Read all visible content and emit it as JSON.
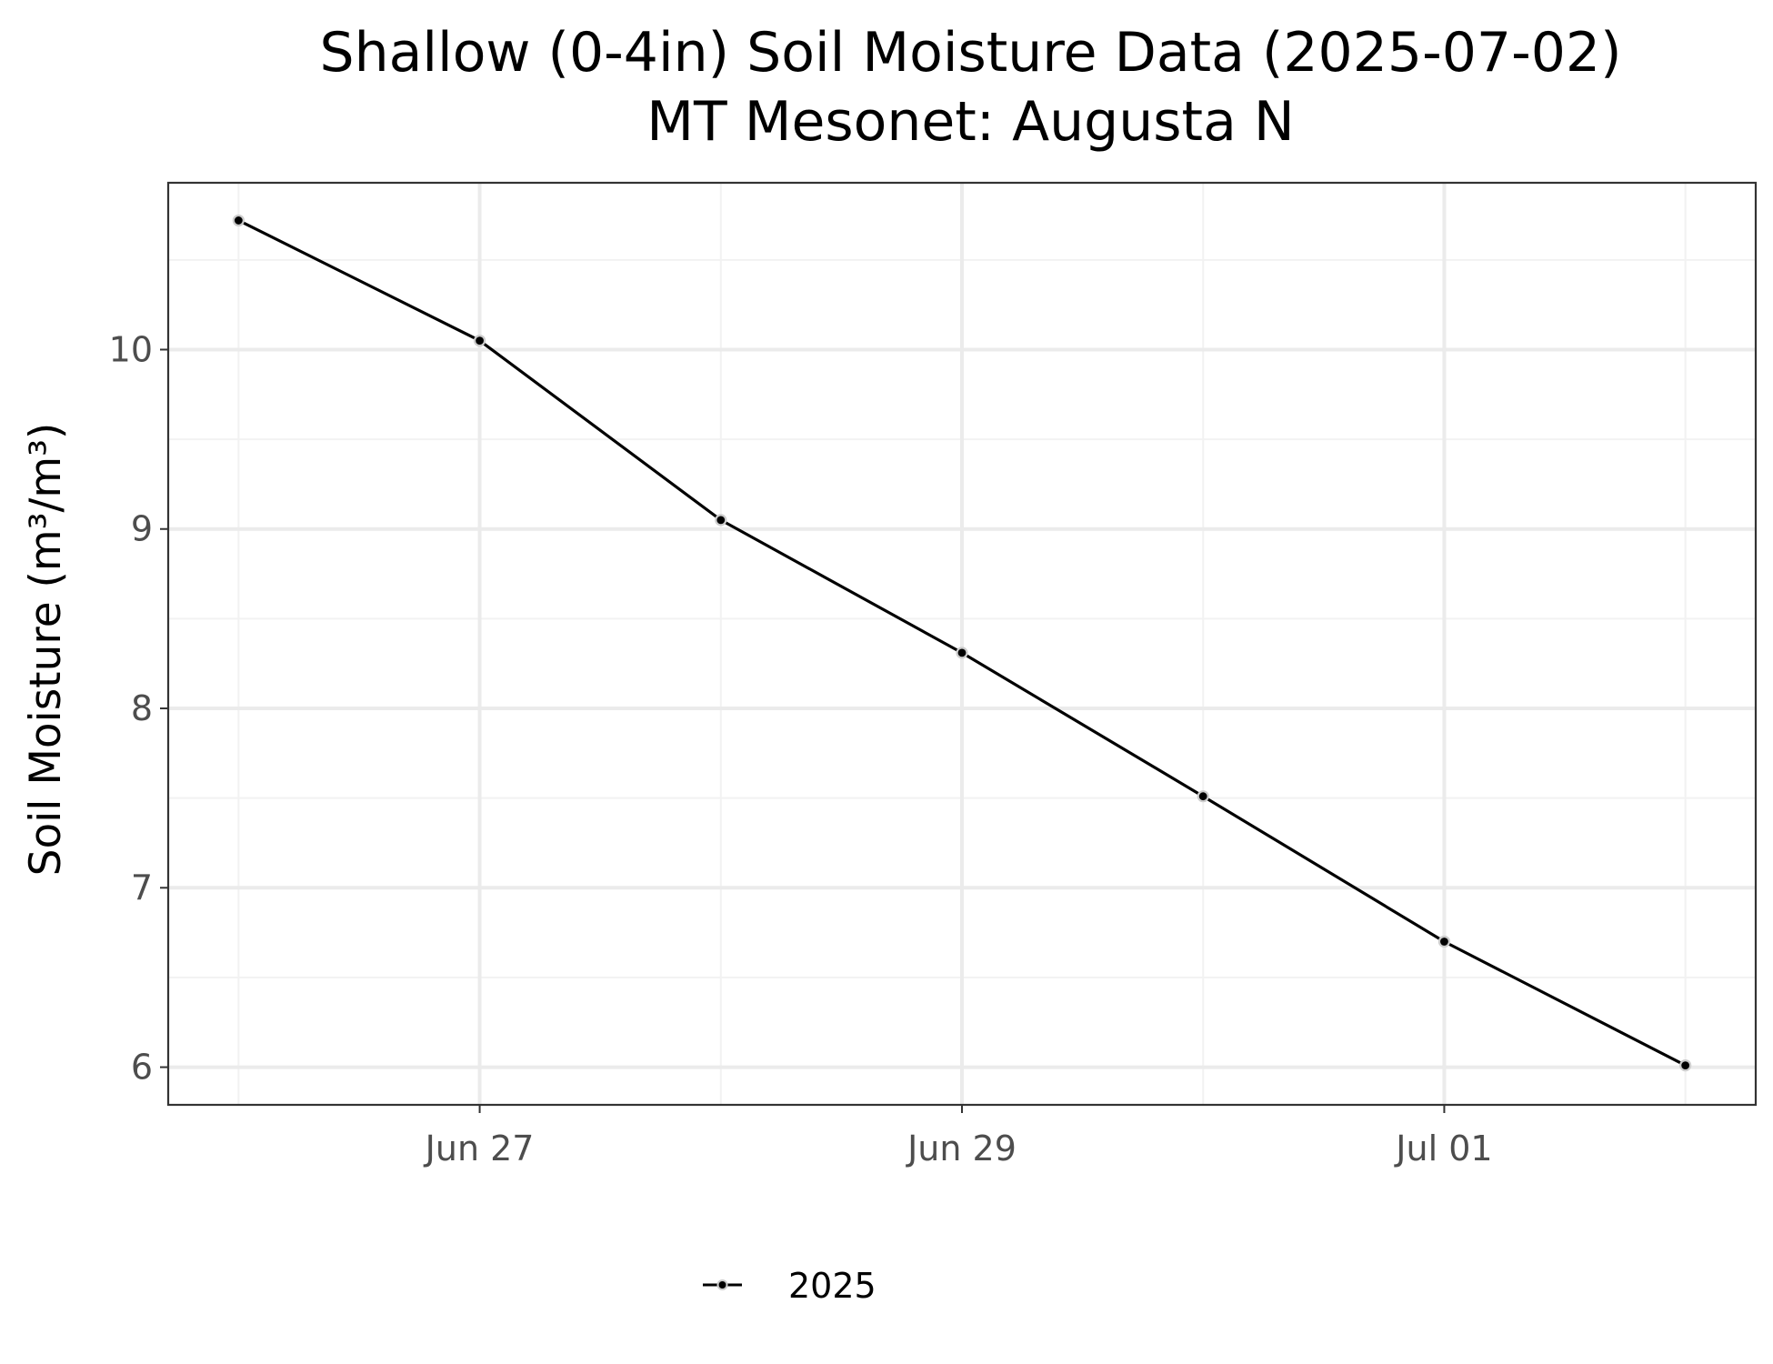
{
  "chart_data": {
    "type": "line",
    "title": "Shallow (0-4in) Soil Moisture Data (2025-07-02)",
    "subtitle": "MT Mesonet: Augusta N",
    "xlabel": "",
    "ylabel": "Soil Moisture (m³/m³)",
    "x": [
      "2025-06-26",
      "2025-06-27",
      "2025-06-28",
      "2025-06-29",
      "2025-06-30",
      "2025-07-01",
      "2025-07-02"
    ],
    "xlim": [
      "2025-06-25T17:00",
      "2025-07-02T07:00"
    ],
    "x_ticks": [
      {
        "date": "2025-06-27",
        "label": "Jun 27"
      },
      {
        "date": "2025-06-29",
        "label": "Jun 29"
      },
      {
        "date": "2025-07-01",
        "label": "Jul 01"
      }
    ],
    "ylim": [
      5.79,
      10.93
    ],
    "y_ticks": [
      6,
      7,
      8,
      9,
      10
    ],
    "y_minor_ticks": [
      6.5,
      7.5,
      8.5,
      9.5,
      10.5
    ],
    "grid": true,
    "legend_position": "bottom",
    "series": [
      {
        "name": "2025",
        "color": "#000000",
        "marker": "point",
        "values": [
          10.72,
          10.05,
          9.05,
          8.31,
          7.51,
          6.7,
          6.01
        ]
      }
    ]
  },
  "colors": {
    "line": "#000000",
    "point_outline": "#cccccc",
    "grid_major": "#ebebeb",
    "grid_minor": "#f2f2f2",
    "panel_border": "#333333",
    "tick_text": "#4d4d4d"
  }
}
